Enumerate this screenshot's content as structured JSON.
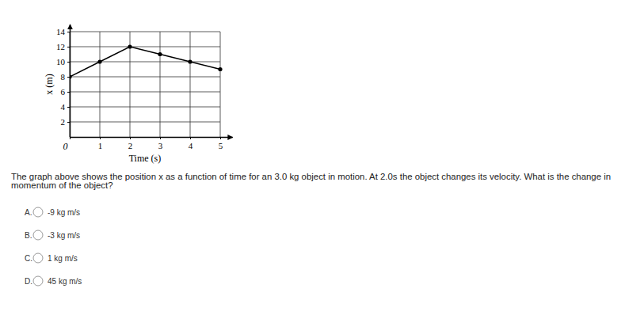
{
  "chart_data": {
    "type": "line",
    "x": [
      0,
      1,
      2,
      3,
      4,
      5
    ],
    "values": [
      8,
      10,
      12,
      11,
      10,
      9
    ],
    "x_label": "Time (s)",
    "y_label": "x (m)",
    "xlim": [
      0,
      5.4
    ],
    "ylim": [
      0,
      15
    ],
    "xticks": [
      0,
      1,
      2,
      3,
      4,
      5
    ],
    "yticks": [
      2,
      4,
      6,
      8,
      10,
      12,
      14
    ],
    "grid": true,
    "color": "#000000",
    "marker": "circle"
  },
  "question": {
    "lines": [
      "The graph above shows the position x as a function of time for an 3.0 kg object in motion.  At 2.0s the object changes its velocity.  What is the change in",
      "momentum of the object?"
    ]
  },
  "options": [
    {
      "letter": "A.",
      "text": "-9 kg m/s"
    },
    {
      "letter": "B.",
      "text": "-3 kg m/s"
    },
    {
      "letter": "C.",
      "text": "1 kg m/s"
    },
    {
      "letter": "D.",
      "text": "45 kg m/s"
    }
  ]
}
